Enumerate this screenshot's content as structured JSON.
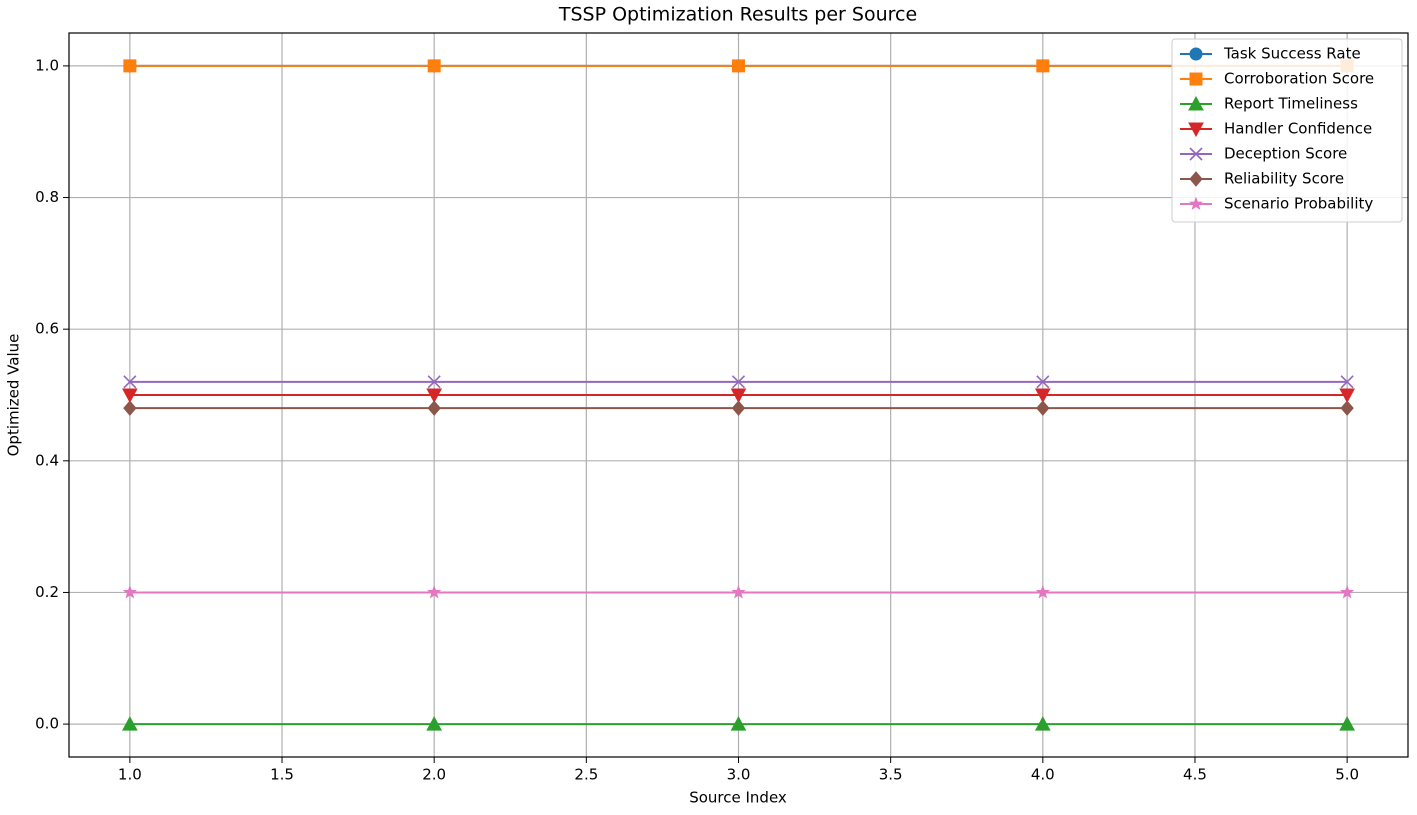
{
  "chart_data": {
    "type": "line",
    "title": "TSSP Optimization Results per Source",
    "xlabel": "Source Index",
    "ylabel": "Optimized Value",
    "x": [
      1,
      2,
      3,
      4,
      5
    ],
    "xlim": [
      0.8,
      5.2
    ],
    "xticks": [
      {
        "value": 1,
        "label": "1.0"
      },
      1.5,
      {
        "value": 2,
        "label": "2.0"
      },
      2.5,
      {
        "value": 3,
        "label": "3.0"
      },
      3.5,
      {
        "value": 4,
        "label": "4.0"
      },
      4.5,
      {
        "value": 5,
        "label": "5.0"
      }
    ],
    "ylim": [
      -0.05,
      1.05
    ],
    "yticks": [
      {
        "value": 0,
        "label": "0.0"
      },
      0.2,
      0.4,
      0.6,
      0.8,
      {
        "value": 1,
        "label": "1.0"
      }
    ],
    "grid": true,
    "legend": "upper right",
    "series": [
      {
        "name": "Task Success Rate",
        "color": "#1f77b4",
        "marker": "circle",
        "values": [
          1,
          1,
          1,
          1,
          1
        ]
      },
      {
        "name": "Corroboration Score",
        "color": "#ff7f0e",
        "marker": "square",
        "values": [
          1,
          1,
          1,
          1,
          1
        ]
      },
      {
        "name": "Report Timeliness",
        "color": "#2ca02c",
        "marker": "triangle-up",
        "values": [
          0,
          0,
          0,
          0,
          0
        ]
      },
      {
        "name": "Handler Confidence",
        "color": "#d62728",
        "marker": "triangle-down",
        "values": [
          0.5,
          0.5,
          0.5,
          0.5,
          0.5
        ]
      },
      {
        "name": "Deception Score",
        "color": "#9467bd",
        "marker": "x",
        "values": [
          0.52,
          0.52,
          0.52,
          0.52,
          0.52
        ]
      },
      {
        "name": "Reliability Score",
        "color": "#8c564b",
        "marker": "diamond",
        "values": [
          0.48,
          0.48,
          0.48,
          0.48,
          0.48
        ]
      },
      {
        "name": "Scenario Probability",
        "color": "#e377c2",
        "marker": "star",
        "values": [
          0.2,
          0.2,
          0.2,
          0.2,
          0.2
        ]
      }
    ]
  }
}
